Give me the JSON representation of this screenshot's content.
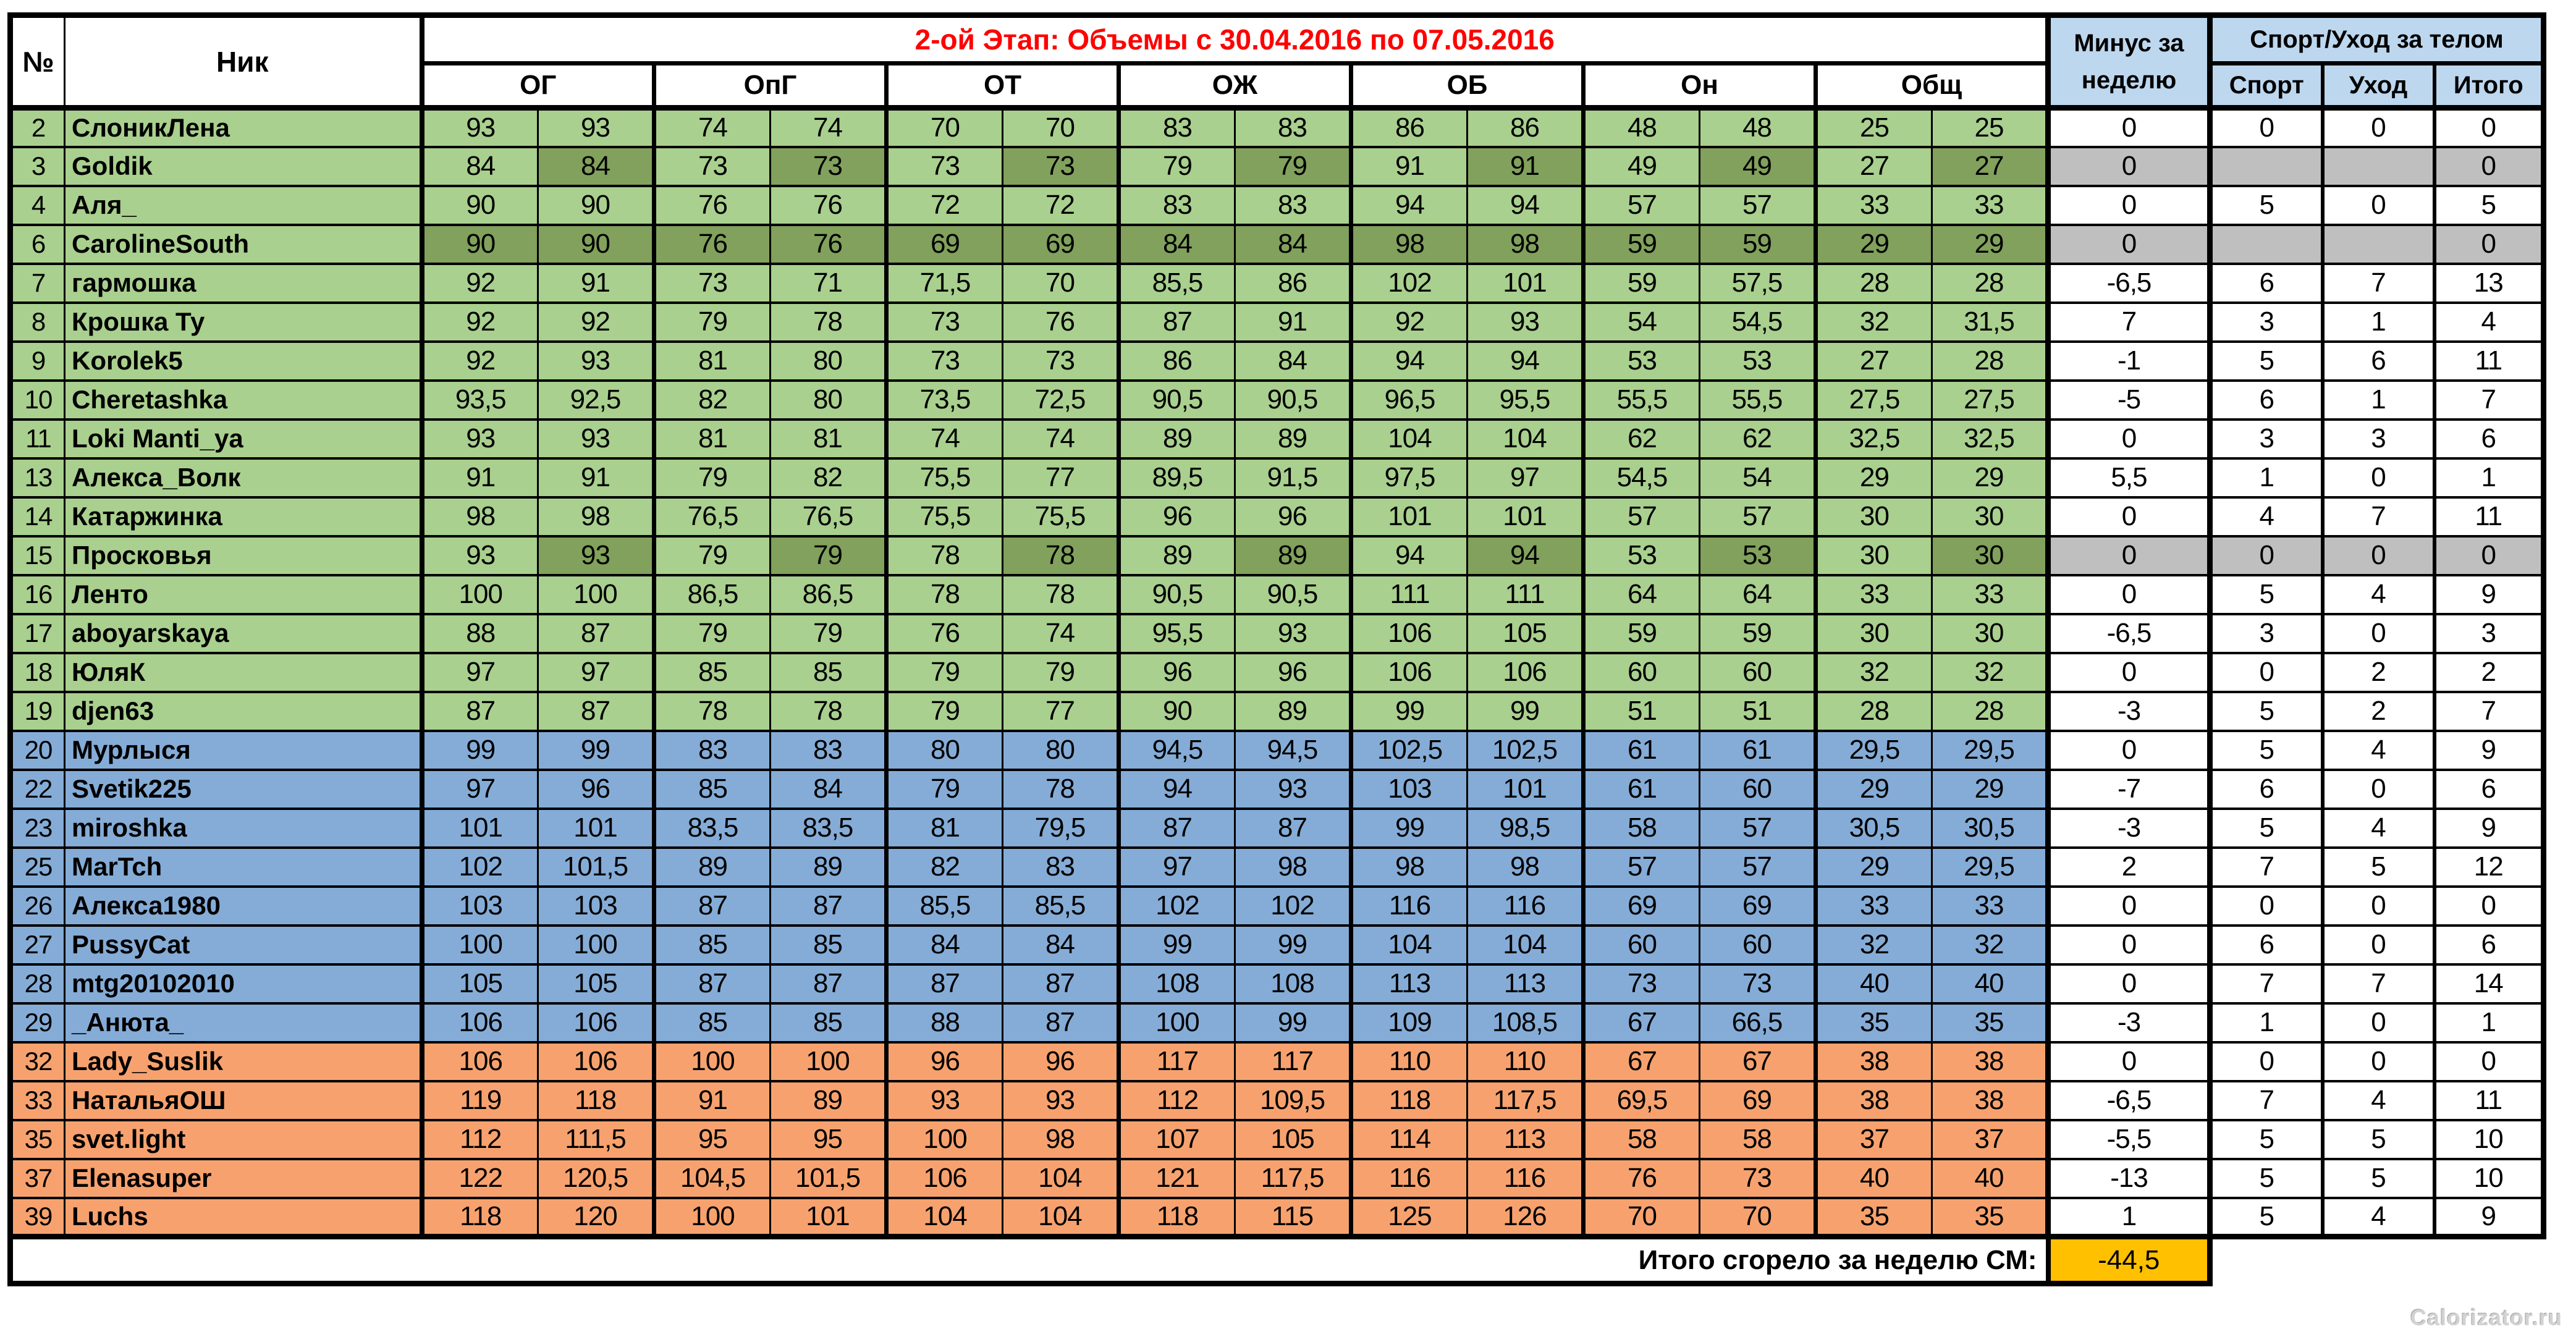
{
  "title": "2-ой Этап: Объемы с  30.04.2016 по 07.05.2016",
  "header": {
    "num": "№",
    "nick": "Ник",
    "groups": [
      "ОГ",
      "ОпГ",
      "ОТ",
      "ОЖ",
      "ОБ",
      "Он",
      "Общ"
    ],
    "minus_week": "Минус за неделю",
    "sport_care_group": "Спорт/Уход за телом",
    "sport": "Спорт",
    "care": "Уход",
    "total": "Итого"
  },
  "footer": {
    "label": "Итого сгорело за неделю СМ:",
    "value": "-44,5"
  },
  "watermark": "Calorizator.ru",
  "colors": {
    "green": "#A9D08E",
    "green_dark": "#81A15C",
    "blue": "#85ACD7",
    "orange": "#F7A26E",
    "header_blue": "#BDD7EE",
    "gray": "#BFBFBF",
    "gold": "#FFC000",
    "title_red": "#FF0000"
  },
  "rows": [
    {
      "num": "2",
      "nick": "СлоникЛена",
      "color": "green",
      "highlight": "none",
      "right_gray": false,
      "values": [
        "93",
        "93",
        "74",
        "74",
        "70",
        "70",
        "83",
        "83",
        "86",
        "86",
        "48",
        "48",
        "25",
        "25"
      ],
      "minus": "0",
      "sport": "0",
      "care": "0",
      "total": "0"
    },
    {
      "num": "3",
      "nick": "Goldik",
      "color": "green",
      "highlight": "second",
      "right_gray": true,
      "values": [
        "84",
        "84",
        "73",
        "73",
        "73",
        "73",
        "79",
        "79",
        "91",
        "91",
        "49",
        "49",
        "27",
        "27"
      ],
      "minus": "0",
      "sport": "",
      "care": "",
      "total": "0"
    },
    {
      "num": "4",
      "nick": "Аля_",
      "color": "green",
      "highlight": "none",
      "right_gray": false,
      "values": [
        "90",
        "90",
        "76",
        "76",
        "72",
        "72",
        "83",
        "83",
        "94",
        "94",
        "57",
        "57",
        "33",
        "33"
      ],
      "minus": "0",
      "sport": "5",
      "care": "0",
      "total": "5"
    },
    {
      "num": "6",
      "nick": "CarolineSouth",
      "color": "green",
      "highlight": "all",
      "right_gray": true,
      "values": [
        "90",
        "90",
        "76",
        "76",
        "69",
        "69",
        "84",
        "84",
        "98",
        "98",
        "59",
        "59",
        "29",
        "29"
      ],
      "minus": "0",
      "sport": "",
      "care": "",
      "total": "0"
    },
    {
      "num": "7",
      "nick": "гармошка",
      "color": "green",
      "highlight": "none",
      "right_gray": false,
      "values": [
        "92",
        "91",
        "73",
        "71",
        "71,5",
        "70",
        "85,5",
        "86",
        "102",
        "101",
        "59",
        "57,5",
        "28",
        "28"
      ],
      "minus": "-6,5",
      "sport": "6",
      "care": "7",
      "total": "13"
    },
    {
      "num": "8",
      "nick": "Крошка Ту",
      "color": "green",
      "highlight": "none",
      "right_gray": false,
      "values": [
        "92",
        "92",
        "79",
        "78",
        "73",
        "76",
        "87",
        "91",
        "92",
        "93",
        "54",
        "54,5",
        "32",
        "31,5"
      ],
      "minus": "7",
      "sport": "3",
      "care": "1",
      "total": "4"
    },
    {
      "num": "9",
      "nick": "Korolek5",
      "color": "green",
      "highlight": "none",
      "right_gray": false,
      "values": [
        "92",
        "93",
        "81",
        "80",
        "73",
        "73",
        "86",
        "84",
        "94",
        "94",
        "53",
        "53",
        "27",
        "28"
      ],
      "minus": "-1",
      "sport": "5",
      "care": "6",
      "total": "11"
    },
    {
      "num": "10",
      "nick": "Cheretashka",
      "color": "green",
      "highlight": "none",
      "right_gray": false,
      "values": [
        "93,5",
        "92,5",
        "82",
        "80",
        "73,5",
        "72,5",
        "90,5",
        "90,5",
        "96,5",
        "95,5",
        "55,5",
        "55,5",
        "27,5",
        "27,5"
      ],
      "minus": "-5",
      "sport": "6",
      "care": "1",
      "total": "7"
    },
    {
      "num": "11",
      "nick": "Loki Manti_ya",
      "color": "green",
      "highlight": "none",
      "right_gray": false,
      "values": [
        "93",
        "93",
        "81",
        "81",
        "74",
        "74",
        "89",
        "89",
        "104",
        "104",
        "62",
        "62",
        "32,5",
        "32,5"
      ],
      "minus": "0",
      "sport": "3",
      "care": "3",
      "total": "6"
    },
    {
      "num": "13",
      "nick": "Алекса_Волк",
      "color": "green",
      "highlight": "none",
      "right_gray": false,
      "values": [
        "91",
        "91",
        "79",
        "82",
        "75,5",
        "77",
        "89,5",
        "91,5",
        "97,5",
        "97",
        "54,5",
        "54",
        "29",
        "29"
      ],
      "minus": "5,5",
      "sport": "1",
      "care": "0",
      "total": "1"
    },
    {
      "num": "14",
      "nick": "Катаржинка",
      "color": "green",
      "highlight": "none",
      "right_gray": false,
      "values": [
        "98",
        "98",
        "76,5",
        "76,5",
        "75,5",
        "75,5",
        "96",
        "96",
        "101",
        "101",
        "57",
        "57",
        "30",
        "30"
      ],
      "minus": "0",
      "sport": "4",
      "care": "7",
      "total": "11"
    },
    {
      "num": "15",
      "nick": "Просковья",
      "color": "green",
      "highlight": "second",
      "right_gray": true,
      "values": [
        "93",
        "93",
        "79",
        "79",
        "78",
        "78",
        "89",
        "89",
        "94",
        "94",
        "53",
        "53",
        "30",
        "30"
      ],
      "minus": "0",
      "sport": "0",
      "care": "0",
      "total": "0"
    },
    {
      "num": "16",
      "nick": "Ленто",
      "color": "green",
      "highlight": "none",
      "right_gray": false,
      "values": [
        "100",
        "100",
        "86,5",
        "86,5",
        "78",
        "78",
        "90,5",
        "90,5",
        "111",
        "111",
        "64",
        "64",
        "33",
        "33"
      ],
      "minus": "0",
      "sport": "5",
      "care": "4",
      "total": "9"
    },
    {
      "num": "17",
      "nick": "aboyarskaya",
      "color": "green",
      "highlight": "none",
      "right_gray": false,
      "values": [
        "88",
        "87",
        "79",
        "79",
        "76",
        "74",
        "95,5",
        "93",
        "106",
        "105",
        "59",
        "59",
        "30",
        "30"
      ],
      "minus": "-6,5",
      "sport": "3",
      "care": "0",
      "total": "3"
    },
    {
      "num": "18",
      "nick": "ЮляК",
      "color": "green",
      "highlight": "none",
      "right_gray": false,
      "values": [
        "97",
        "97",
        "85",
        "85",
        "79",
        "79",
        "96",
        "96",
        "106",
        "106",
        "60",
        "60",
        "32",
        "32"
      ],
      "minus": "0",
      "sport": "0",
      "care": "2",
      "total": "2"
    },
    {
      "num": "19",
      "nick": "djen63",
      "color": "green",
      "highlight": "none",
      "right_gray": false,
      "values": [
        "87",
        "87",
        "78",
        "78",
        "79",
        "77",
        "90",
        "89",
        "99",
        "99",
        "51",
        "51",
        "28",
        "28"
      ],
      "minus": "-3",
      "sport": "5",
      "care": "2",
      "total": "7"
    },
    {
      "num": "20",
      "nick": "Мурлыся",
      "color": "blue",
      "highlight": "none",
      "right_gray": false,
      "values": [
        "99",
        "99",
        "83",
        "83",
        "80",
        "80",
        "94,5",
        "94,5",
        "102,5",
        "102,5",
        "61",
        "61",
        "29,5",
        "29,5"
      ],
      "minus": "0",
      "sport": "5",
      "care": "4",
      "total": "9"
    },
    {
      "num": "22",
      "nick": "Svetik225",
      "color": "blue",
      "highlight": "none",
      "right_gray": false,
      "values": [
        "97",
        "96",
        "85",
        "84",
        "79",
        "78",
        "94",
        "93",
        "103",
        "101",
        "61",
        "60",
        "29",
        "29"
      ],
      "minus": "-7",
      "sport": "6",
      "care": "0",
      "total": "6"
    },
    {
      "num": "23",
      "nick": "miroshka",
      "color": "blue",
      "highlight": "none",
      "right_gray": false,
      "values": [
        "101",
        "101",
        "83,5",
        "83,5",
        "81",
        "79,5",
        "87",
        "87",
        "99",
        "98,5",
        "58",
        "57",
        "30,5",
        "30,5"
      ],
      "minus": "-3",
      "sport": "5",
      "care": "4",
      "total": "9"
    },
    {
      "num": "25",
      "nick": "MarTch",
      "color": "blue",
      "highlight": "none",
      "right_gray": false,
      "values": [
        "102",
        "101,5",
        "89",
        "89",
        "82",
        "83",
        "97",
        "98",
        "98",
        "98",
        "57",
        "57",
        "29",
        "29,5"
      ],
      "minus": "2",
      "sport": "7",
      "care": "5",
      "total": "12"
    },
    {
      "num": "26",
      "nick": "Алекса1980",
      "color": "blue",
      "highlight": "none",
      "right_gray": false,
      "values": [
        "103",
        "103",
        "87",
        "87",
        "85,5",
        "85,5",
        "102",
        "102",
        "116",
        "116",
        "69",
        "69",
        "33",
        "33"
      ],
      "minus": "0",
      "sport": "0",
      "care": "0",
      "total": "0"
    },
    {
      "num": "27",
      "nick": "PussyCat",
      "color": "blue",
      "highlight": "none",
      "right_gray": false,
      "values": [
        "100",
        "100",
        "85",
        "85",
        "84",
        "84",
        "99",
        "99",
        "104",
        "104",
        "60",
        "60",
        "32",
        "32"
      ],
      "minus": "0",
      "sport": "6",
      "care": "0",
      "total": "6"
    },
    {
      "num": "28",
      "nick": "mtg20102010",
      "color": "blue",
      "highlight": "none",
      "right_gray": false,
      "values": [
        "105",
        "105",
        "87",
        "87",
        "87",
        "87",
        "108",
        "108",
        "113",
        "113",
        "73",
        "73",
        "40",
        "40"
      ],
      "minus": "0",
      "sport": "7",
      "care": "7",
      "total": "14"
    },
    {
      "num": "29",
      "nick": "_Анюта_",
      "color": "blue",
      "highlight": "none",
      "right_gray": false,
      "values": [
        "106",
        "106",
        "85",
        "85",
        "88",
        "87",
        "100",
        "99",
        "109",
        "108,5",
        "67",
        "66,5",
        "35",
        "35"
      ],
      "minus": "-3",
      "sport": "1",
      "care": "0",
      "total": "1"
    },
    {
      "num": "32",
      "nick": "Lady_Suslik",
      "color": "orange",
      "highlight": "none",
      "right_gray": false,
      "values": [
        "106",
        "106",
        "100",
        "100",
        "96",
        "96",
        "117",
        "117",
        "110",
        "110",
        "67",
        "67",
        "38",
        "38"
      ],
      "minus": "0",
      "sport": "0",
      "care": "0",
      "total": "0"
    },
    {
      "num": "33",
      "nick": "НатальяОШ",
      "color": "orange",
      "highlight": "none",
      "right_gray": false,
      "values": [
        "119",
        "118",
        "91",
        "89",
        "93",
        "93",
        "112",
        "109,5",
        "118",
        "117,5",
        "69,5",
        "69",
        "38",
        "38"
      ],
      "minus": "-6,5",
      "sport": "7",
      "care": "4",
      "total": "11"
    },
    {
      "num": "35",
      "nick": "svet.light",
      "color": "orange",
      "highlight": "none",
      "right_gray": false,
      "values": [
        "112",
        "111,5",
        "95",
        "95",
        "100",
        "98",
        "107",
        "105",
        "114",
        "113",
        "58",
        "58",
        "37",
        "37"
      ],
      "minus": "-5,5",
      "sport": "5",
      "care": "5",
      "total": "10"
    },
    {
      "num": "37",
      "nick": "Elenasuper",
      "color": "orange",
      "highlight": "none",
      "right_gray": false,
      "values": [
        "122",
        "120,5",
        "104,5",
        "101,5",
        "106",
        "104",
        "121",
        "117,5",
        "116",
        "116",
        "76",
        "73",
        "40",
        "40"
      ],
      "minus": "-13",
      "sport": "5",
      "care": "5",
      "total": "10"
    },
    {
      "num": "39",
      "nick": "Luchs",
      "color": "orange",
      "highlight": "none",
      "right_gray": false,
      "values": [
        "118",
        "120",
        "100",
        "101",
        "104",
        "104",
        "118",
        "115",
        "125",
        "126",
        "70",
        "70",
        "35",
        "35"
      ],
      "minus": "1",
      "sport": "5",
      "care": "4",
      "total": "9"
    }
  ]
}
